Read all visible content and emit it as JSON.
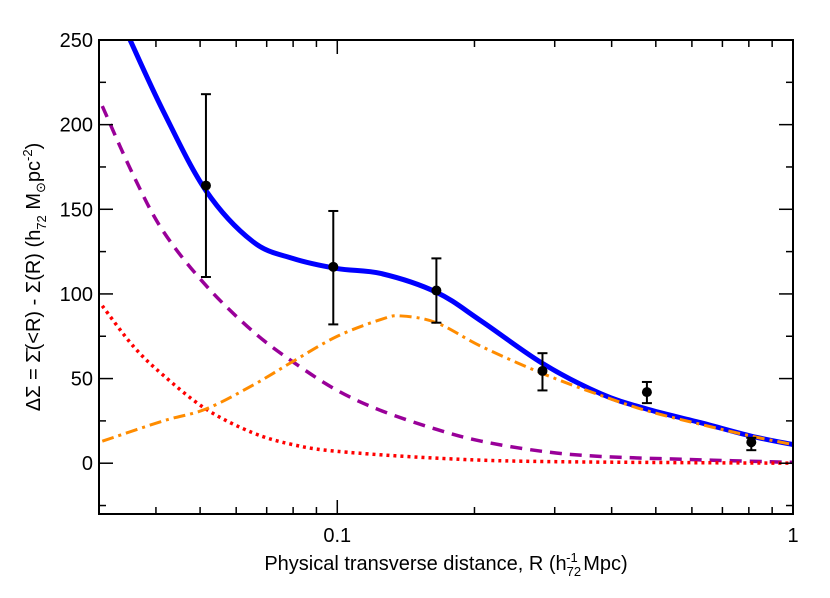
{
  "chart_data": {
    "type": "line",
    "title": "",
    "xlabel": "Physical transverse distance,  R (h",
    "xlabel_sub": "72",
    "xlabel_sup": "-1",
    "xlabel_end": " Mpc)",
    "ylabel": "ΔΣ = Σ̄(<R) - Σ(R)  (h",
    "ylabel_sub": "72",
    "ylabel_mid": " M",
    "ylabel_sun": "⊙",
    "ylabel_mid2": "pc",
    "ylabel_sup": "-2",
    "ylabel_end": ")",
    "xscale": "log",
    "xlim": [
      0.03,
      1
    ],
    "ylim": [
      -30,
      250
    ],
    "xticks": [
      {
        "value": 0.1,
        "label": "0.1"
      },
      {
        "value": 1,
        "label": "1"
      }
    ],
    "yticks": [
      {
        "value": 0,
        "label": "0"
      },
      {
        "value": 50,
        "label": "50"
      },
      {
        "value": 100,
        "label": "100"
      },
      {
        "value": 150,
        "label": "150"
      },
      {
        "value": 200,
        "label": "200"
      },
      {
        "value": 250,
        "label": "250"
      }
    ],
    "grid": false,
    "points": [
      {
        "x": 0.0515,
        "y": 164,
        "ylo": 110,
        "yhi": 218
      },
      {
        "x": 0.098,
        "y": 116,
        "ylo": 82,
        "yhi": 149
      },
      {
        "x": 0.165,
        "y": 102,
        "ylo": 83,
        "yhi": 121
      },
      {
        "x": 0.282,
        "y": 54.5,
        "ylo": 43,
        "yhi": 65
      },
      {
        "x": 0.478,
        "y": 42,
        "ylo": 35.5,
        "yhi": 48
      },
      {
        "x": 0.81,
        "y": 12.4,
        "ylo": 7.7,
        "yhi": 15
      }
    ],
    "series": [
      {
        "style": "solid",
        "color": "#0000ff",
        "x": [
          0.0351,
          0.0415,
          0.0515,
          0.0652,
          0.0798,
          0.1,
          0.125,
          0.165,
          0.207,
          0.282,
          0.379,
          0.478,
          0.626,
          0.81,
          1
        ],
        "y": [
          250,
          208,
          161,
          131,
          121,
          115,
          112,
          101,
          84,
          59,
          41,
          32,
          24,
          16,
          11
        ]
      },
      {
        "style": "dashed",
        "color": "#990099",
        "x": [
          0.0305,
          0.0357,
          0.0415,
          0.0515,
          0.0652,
          0.0798,
          0.1,
          0.125,
          0.165,
          0.207,
          0.282,
          0.379,
          0.626,
          1
        ],
        "y": [
          211,
          170,
          137,
          105,
          78,
          60,
          43,
          31,
          20,
          13,
          7,
          4,
          2,
          0.5
        ]
      },
      {
        "style": "dotted",
        "color": "#ff0000",
        "x": [
          0.0305,
          0.0357,
          0.0415,
          0.0515,
          0.0652,
          0.0798,
          0.1,
          0.165,
          0.282,
          1
        ],
        "y": [
          93,
          69,
          52,
          32,
          18,
          11,
          7,
          3,
          1,
          0
        ]
      },
      {
        "style": "dashdot",
        "color": "#ff8c00",
        "x": [
          0.0305,
          0.0415,
          0.0515,
          0.0652,
          0.0798,
          0.1,
          0.125,
          0.138,
          0.165,
          0.207,
          0.282,
          0.379,
          0.478,
          0.626,
          0.81,
          1
        ],
        "y": [
          13,
          25,
          32,
          46,
          60,
          75,
          85,
          87,
          83,
          69,
          53,
          40,
          31,
          23,
          16,
          11
        ]
      }
    ]
  }
}
